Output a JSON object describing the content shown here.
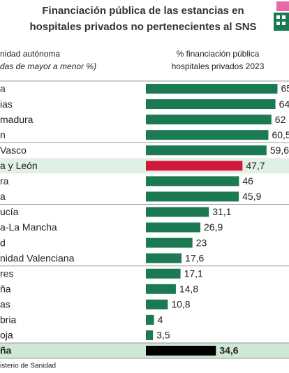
{
  "chart_data": {
    "type": "bar",
    "orientation": "horizontal",
    "title": [
      "Financiación pública de las estancias en",
      "hospitales privados no pertenecientes al SNS"
    ],
    "category_header": [
      "nidad autónoma",
      "das de mayor a menor %)"
    ],
    "value_header": [
      "% financiación pública",
      "hospitales privados 2023"
    ],
    "categories": [
      "a",
      "ias",
      "madura",
      "n",
      "Vasco",
      "a y León",
      "ra",
      "a",
      "ucía",
      "a-La Mancha",
      "d",
      "nidad Valenciana",
      "res",
      "ña",
      "as",
      "bria",
      "oja",
      "ña"
    ],
    "values": [
      65,
      64,
      62,
      60.5,
      59.6,
      47.7,
      46,
      45.9,
      31.1,
      26.9,
      23,
      17.6,
      17.1,
      14.8,
      10.8,
      4,
      3.5,
      34.6
    ],
    "value_labels": [
      "65",
      "64",
      "62",
      "60,5",
      "59,6",
      "47,7",
      "46",
      "45,9",
      "31,1",
      "26,9",
      "23",
      "17,6",
      "17,1",
      "14,8",
      "10,8",
      "4",
      "3,5",
      "34,6"
    ],
    "colors": [
      "#1b7a52",
      "#1b7a52",
      "#1b7a52",
      "#1b7a52",
      "#1b7a52",
      "#d2173c",
      "#1b7a52",
      "#1b7a52",
      "#1b7a52",
      "#1b7a52",
      "#1b7a52",
      "#1b7a52",
      "#1b7a52",
      "#1b7a52",
      "#1b7a52",
      "#1b7a52",
      "#1b7a52",
      "#000000"
    ],
    "highlight_rows": [
      5,
      17
    ],
    "bold_rows": [
      17
    ],
    "xlim": [
      0,
      70
    ],
    "source": "isterio de Sanidad"
  }
}
